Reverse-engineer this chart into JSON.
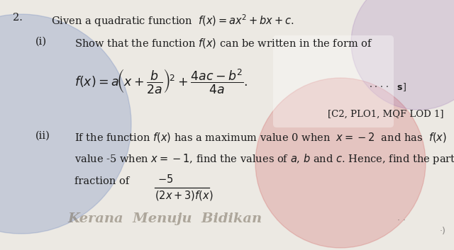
{
  "bg_color": "#ece9e3",
  "question_number": "2.",
  "main_text": "Given a quadratic function  $f(x)= ax^2 +bx+c$.",
  "part_i_label": "(i)",
  "part_i_text": "Show that the function $f(x)$ can be written in the form of",
  "marks_label": "[C2, PLO1, MQF LOD 1]",
  "part_ii_label": "(ii)",
  "part_ii_line1": "If the function $f(x)$ has a maximum value 0 when  $x=-2$  and has  $f(x)$",
  "part_ii_line2": "value -5 when $x=-1$, find the values of $a$, $b$ and $c$. Hence, find the partial",
  "fraction_label": "fraction of",
  "text_color": "#1c1c1c",
  "circle_blue_color": "#6680bb",
  "circle_blue_alpha": 0.28,
  "circle_red_color": "#cc4444",
  "circle_red_alpha": 0.22,
  "circle_purple_color": "#8855aa",
  "circle_purple_alpha": 0.18,
  "watermark_color": "#7a7060",
  "watermark_alpha": 0.55
}
